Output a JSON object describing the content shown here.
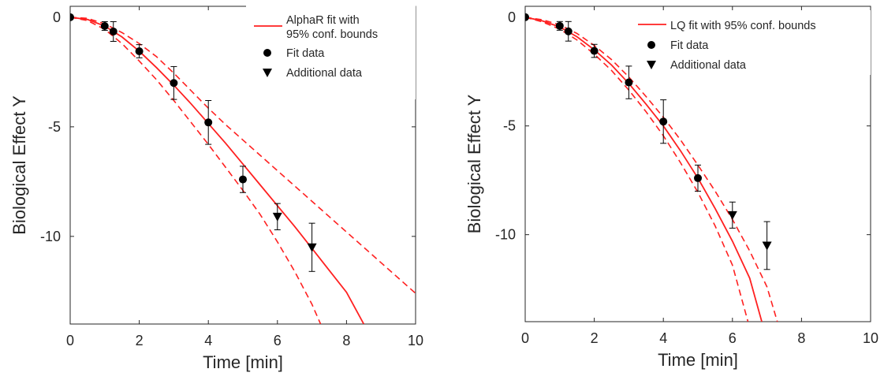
{
  "chart_data": [
    {
      "type": "line",
      "xlabel": "Time [min]",
      "ylabel": "Biological Effect Y",
      "xlim": [
        0,
        10
      ],
      "ylim": [
        -14,
        0.5
      ],
      "xticks": [
        0,
        2,
        4,
        6,
        8,
        10
      ],
      "yticks": [
        0,
        -5,
        -10
      ],
      "ytick_labels": [
        "0",
        "-5",
        "-10"
      ],
      "legend_position": "top-right",
      "colors": {
        "fit": "#ff2020",
        "data": "#000000",
        "axis": "#262626"
      },
      "legend": [
        {
          "marker": "line",
          "label": [
            "AlphaR fit with",
            "95% conf. bounds"
          ]
        },
        {
          "marker": "circle",
          "label": [
            "Fit data"
          ]
        },
        {
          "marker": "triangle-down",
          "label": [
            "Additional data"
          ]
        }
      ],
      "series": [
        {
          "kind": "fit",
          "x": [
            0,
            0.5,
            1,
            1.5,
            2,
            2.5,
            3,
            3.5,
            4,
            4.5,
            5,
            5.5,
            6,
            6.5,
            7,
            7.5,
            8,
            8.5
          ],
          "y": [
            0,
            -0.1,
            -0.4,
            -0.9,
            -1.55,
            -2.3,
            -3.1,
            -3.95,
            -4.85,
            -5.75,
            -6.7,
            -7.65,
            -8.6,
            -9.55,
            -10.55,
            -11.55,
            -12.55,
            -14
          ]
        },
        {
          "kind": "bound-lower",
          "x": [
            0,
            0.5,
            1,
            1.5,
            2,
            2.5,
            3,
            3.5,
            4,
            4.5,
            5,
            5.5,
            6,
            6.5,
            7,
            7.25
          ],
          "y": [
            0,
            -0.15,
            -0.55,
            -1.2,
            -2.0,
            -2.85,
            -3.8,
            -4.8,
            -5.8,
            -6.85,
            -7.9,
            -9.0,
            -10.25,
            -11.6,
            -13.1,
            -14
          ]
        },
        {
          "kind": "bound-upper",
          "x": [
            0,
            0.5,
            1,
            1.5,
            2,
            2.5,
            3,
            3.5,
            4,
            4.5,
            5,
            5.5,
            6,
            6.5,
            7,
            7.5,
            8,
            8.5,
            9,
            9.5,
            10
          ],
          "y": [
            0,
            -0.05,
            -0.3,
            -0.7,
            -1.2,
            -1.8,
            -2.55,
            -3.35,
            -4.15,
            -4.9,
            -5.6,
            -6.3,
            -7.0,
            -7.7,
            -8.4,
            -9.1,
            -9.8,
            -10.5,
            -11.2,
            -11.9,
            -12.6
          ]
        },
        {
          "kind": "fit-data",
          "x": [
            0,
            1,
            1.25,
            2,
            3,
            4,
            5
          ],
          "y": [
            0,
            -0.4,
            -0.65,
            -1.55,
            -3.0,
            -4.8,
            -7.4
          ],
          "err": [
            0.1,
            0.2,
            0.45,
            0.3,
            0.75,
            1.0,
            0.6
          ]
        },
        {
          "kind": "additional-data",
          "x": [
            6,
            7
          ],
          "y": [
            -9.1,
            -10.5
          ],
          "err": [
            0.6,
            1.1
          ]
        }
      ]
    },
    {
      "type": "line",
      "xlabel": "Time [min]",
      "ylabel": "Biological Effect Y",
      "xlim": [
        0,
        10
      ],
      "ylim": [
        -14,
        0.5
      ],
      "xticks": [
        0,
        2,
        4,
        6,
        8,
        10
      ],
      "yticks": [
        0,
        -5,
        -10
      ],
      "ytick_labels": [
        "0",
        "-5",
        "-10"
      ],
      "legend_position": "top-right",
      "colors": {
        "fit": "#ff2020",
        "data": "#000000",
        "axis": "#262626"
      },
      "legend": [
        {
          "marker": "line",
          "label": [
            "LQ fit with 95% conf. bounds"
          ]
        },
        {
          "marker": "circle",
          "label": [
            "Fit data"
          ]
        },
        {
          "marker": "triangle-down",
          "label": [
            "Additional data"
          ]
        }
      ],
      "series": [
        {
          "kind": "fit",
          "x": [
            0,
            0.5,
            1,
            1.5,
            2,
            2.5,
            3,
            3.5,
            4,
            4.5,
            5,
            5.5,
            6,
            6.5,
            6.85
          ],
          "y": [
            0,
            -0.17,
            -0.45,
            -0.9,
            -1.5,
            -2.2,
            -3.05,
            -4.0,
            -5.0,
            -6.15,
            -7.4,
            -8.8,
            -10.3,
            -12.0,
            -14
          ]
        },
        {
          "kind": "bound-lower",
          "x": [
            0,
            0.5,
            1,
            1.5,
            2,
            2.5,
            3,
            3.5,
            4,
            4.5,
            5,
            5.5,
            6,
            6.45
          ],
          "y": [
            0,
            -0.22,
            -0.55,
            -1.05,
            -1.7,
            -2.45,
            -3.35,
            -4.35,
            -5.45,
            -6.7,
            -8.05,
            -9.6,
            -11.4,
            -14
          ]
        },
        {
          "kind": "bound-upper",
          "x": [
            0,
            0.5,
            1,
            1.5,
            2,
            2.5,
            3,
            3.5,
            4,
            4.5,
            5,
            5.5,
            6,
            6.5,
            7,
            7.3
          ],
          "y": [
            0,
            -0.12,
            -0.35,
            -0.75,
            -1.3,
            -1.95,
            -2.75,
            -3.65,
            -4.6,
            -5.65,
            -6.8,
            -8.0,
            -9.3,
            -10.75,
            -12.4,
            -14
          ]
        },
        {
          "kind": "fit-data",
          "x": [
            0,
            1,
            1.25,
            2,
            3,
            4,
            5
          ],
          "y": [
            0,
            -0.4,
            -0.65,
            -1.55,
            -3.0,
            -4.8,
            -7.4
          ],
          "err": [
            0.1,
            0.2,
            0.45,
            0.3,
            0.75,
            1.0,
            0.6
          ]
        },
        {
          "kind": "additional-data",
          "x": [
            6,
            7
          ],
          "y": [
            -9.1,
            -10.5
          ],
          "err": [
            0.6,
            1.1
          ]
        }
      ]
    }
  ]
}
